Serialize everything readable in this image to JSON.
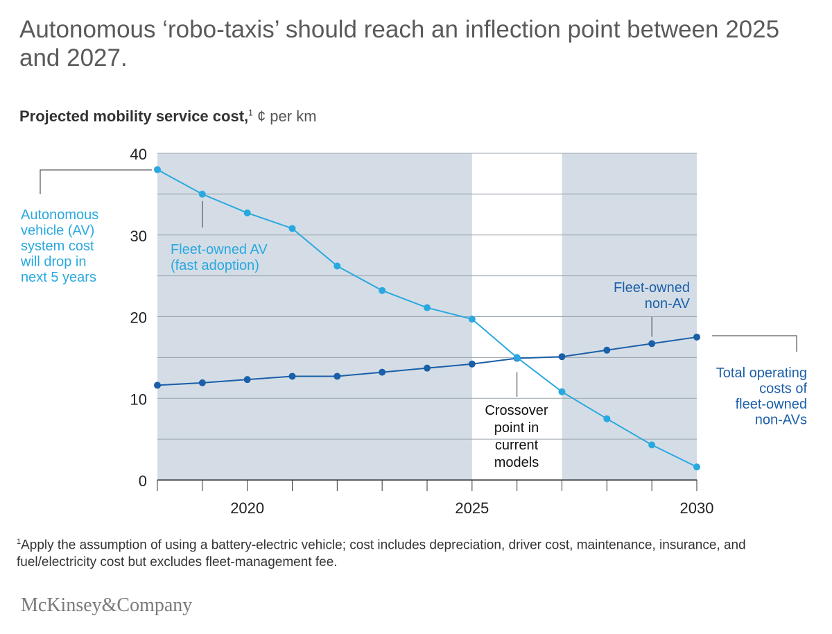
{
  "title": "Autonomous ‘robo-taxis’ should reach an inflection point between 2025 and 2027.",
  "subtitle": {
    "bold": "Projected mobility service cost,",
    "footnote_mark": "1",
    "unit": "¢ per km"
  },
  "footnote": {
    "mark": "1",
    "text": "Apply the assumption of using a battery-electric vehicle; cost includes depreciation, driver cost, maintenance, insurance, and fuel/electricity cost but excludes fleet-management fee."
  },
  "logo": "McKinsey&Company",
  "colors": {
    "av": "#29a8e0",
    "non_av": "#1b5fa8",
    "shade": "#d4dde6",
    "grid": "#9aa3ab"
  },
  "chart_data": {
    "type": "line",
    "x": [
      2018,
      2019,
      2020,
      2021,
      2022,
      2023,
      2024,
      2025,
      2026,
      2027,
      2028,
      2029,
      2030
    ],
    "xlim": [
      2018,
      2030
    ],
    "ylim": [
      0,
      40
    ],
    "xticks": [
      2020,
      2025,
      2030
    ],
    "yticks": [
      0,
      10,
      20,
      30,
      40
    ],
    "xtick_labels": [
      "2020",
      "2025",
      "2030"
    ],
    "ytick_labels": [
      "0",
      "10",
      "20",
      "30",
      "40"
    ],
    "shaded_ranges": [
      [
        2018,
        2025
      ],
      [
        2027,
        2030
      ]
    ],
    "series": [
      {
        "key": "av",
        "name": "Fleet-owned AV (fast adoption)",
        "label_lines": [
          "Fleet-owned AV",
          "(fast adoption)"
        ],
        "values": [
          38,
          35,
          32.7,
          30.8,
          26.2,
          23.2,
          21.1,
          19.7,
          15,
          10.8,
          7.5,
          4.3,
          1.6
        ]
      },
      {
        "key": "non_av",
        "name": "Fleet-owned non-AV",
        "label_lines": [
          "Fleet-owned",
          "non-AV"
        ],
        "values": [
          11.6,
          11.9,
          12.3,
          12.7,
          12.7,
          13.2,
          13.7,
          14.2,
          14.9,
          15.1,
          15.9,
          16.7,
          17.5
        ]
      }
    ],
    "annotations": {
      "av_cost": [
        "Autonomous",
        "vehicle (AV)",
        "system cost",
        "will drop in",
        "next 5 years"
      ],
      "crossover": [
        "Crossover",
        "point in",
        "current",
        "models"
      ],
      "total_operating": [
        "Total operating",
        "costs of",
        "fleet-owned",
        "non-AVs"
      ]
    }
  }
}
